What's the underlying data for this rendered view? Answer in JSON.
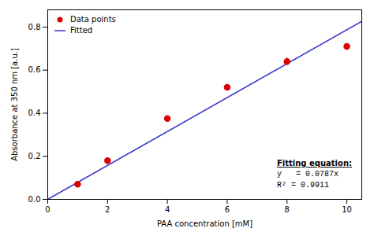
{
  "chart_data": {
    "type": "scatter",
    "xlabel": "PAA concentration [mM]",
    "ylabel": "Absorbance at 350 nm [a.u.]",
    "xlim": [
      0,
      10.5
    ],
    "ylim": [
      0,
      0.88
    ],
    "xticks": [
      0,
      2,
      4,
      6,
      8,
      10
    ],
    "yticks": [
      {
        "value": 0,
        "label": "0.0"
      },
      0.2,
      0.4,
      0.6,
      0.8
    ],
    "legend": "upper left",
    "series": [
      {
        "name": "Data points",
        "type": "scatter",
        "color": "#dd0000",
        "marker": "circle",
        "x": [
          1,
          2,
          4,
          6,
          8,
          10
        ],
        "values": [
          0.07,
          0.18,
          0.375,
          0.52,
          0.64,
          0.71
        ],
        "xerr": [
          0.0,
          0.0,
          0.0,
          0.0,
          0.0,
          0.0
        ],
        "yerr": [
          0.007,
          0.007,
          0.007,
          0.007,
          0.018,
          0.007
        ]
      },
      {
        "name": "Fitted",
        "type": "line",
        "color": "#3333cc",
        "x": [
          0,
          10.5
        ],
        "values": [
          0,
          0.82635
        ]
      }
    ],
    "annotations": [
      "Fitting equation:",
      "y   = 0.0787x",
      "R² = 0.9911"
    ]
  }
}
